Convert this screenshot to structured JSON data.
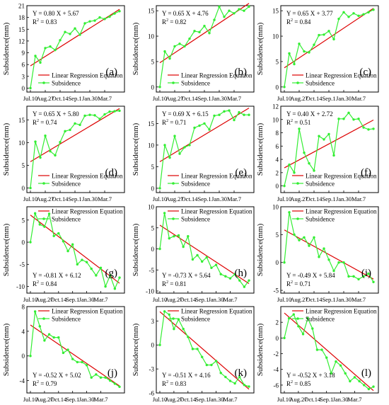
{
  "colors": {
    "regression": "#dd0000",
    "subsidence": "#33ee33",
    "axis": "#000000"
  },
  "common": {
    "ylabel": "Subsidence(mm)",
    "x_tick_labels": [
      "Jul.10",
      "Aug.27",
      "Oct.14",
      "Sep.1",
      "Jan.30",
      "Mar.7"
    ],
    "legend_regression": "Linear Regression Equation",
    "legend_subsidence": "Subsidence"
  },
  "chart_data": [
    {
      "type": "line",
      "label": "(a)",
      "equation": "Y = 0.80 X + 5.67",
      "r2_text": "R",
      "r2_value": " = 0.83",
      "ylim": [
        -1,
        21
      ],
      "yticks": [
        0,
        3,
        6,
        9,
        12,
        15,
        18,
        21
      ],
      "stats_pos": "top-left",
      "legend_pos": "bottom-right",
      "series": [
        {
          "name": "Linear Regression Equation",
          "kind": "regression",
          "slope": 0.8,
          "intercept": 5.67
        },
        {
          "name": "Subsidence",
          "kind": "data",
          "values": [
            0,
            8.2,
            6.5,
            10.2,
            10.6,
            9.7,
            12.2,
            14.3,
            13.8,
            15.2,
            13.6,
            16.5,
            17.0,
            17.2,
            18.0,
            17.6,
            18.2,
            19.0,
            19.6
          ]
        }
      ]
    },
    {
      "type": "line",
      "label": "(b)",
      "equation": "Y = 0.65 X + 4.76",
      "r2_text": "R",
      "r2_value": " = 0.82",
      "ylim": [
        -1,
        16
      ],
      "yticks": [
        0,
        5,
        10,
        15
      ],
      "stats_pos": "top-left",
      "legend_pos": "bottom-right",
      "series": [
        {
          "name": "Linear Regression Equation",
          "kind": "regression",
          "slope": 0.65,
          "intercept": 4.76
        },
        {
          "name": "Subsidence",
          "kind": "data",
          "values": [
            0,
            7.0,
            5.6,
            8.0,
            8.5,
            8.0,
            9.5,
            11.0,
            10.8,
            12.0,
            10.6,
            13.2,
            15.8,
            13.8,
            15.0,
            14.5,
            15.3,
            15.0,
            15.8
          ]
        }
      ]
    },
    {
      "type": "line",
      "label": "(c)",
      "equation": "Y = 0.65 X + 3.77",
      "r2_text": "R",
      "r2_value": " = 0.84",
      "ylim": [
        -1,
        16
      ],
      "yticks": [
        0,
        5,
        10,
        15
      ],
      "stats_pos": "top-left",
      "legend_pos": "bottom-right",
      "series": [
        {
          "name": "Linear Regression Equation",
          "kind": "regression",
          "slope": 0.65,
          "intercept": 3.77
        },
        {
          "name": "Subsidence",
          "kind": "data",
          "values": [
            0,
            6.6,
            4.5,
            8.5,
            7.0,
            6.8,
            8.3,
            10.2,
            10.3,
            11.0,
            9.4,
            13.4,
            14.7,
            13.8,
            14.5,
            14.0,
            14.3,
            14.7,
            15.2
          ]
        }
      ]
    },
    {
      "type": "line",
      "label": "(d)",
      "equation": "Y = 0.65 X + 5.80",
      "r2_text": "R",
      "r2_value": " = 0.74",
      "ylim": [
        -1,
        18
      ],
      "yticks": [
        0,
        5,
        10,
        15
      ],
      "stats_pos": "top-left",
      "legend_pos": "bottom-right",
      "series": [
        {
          "name": "Linear Regression Equation",
          "kind": "regression",
          "slope": 0.65,
          "intercept": 5.8
        },
        {
          "name": "Subsidence",
          "kind": "data",
          "values": [
            0,
            10.2,
            6.7,
            11.5,
            8.1,
            7.2,
            10.1,
            12.5,
            12.8,
            14.2,
            13.9,
            15.9,
            16.1,
            16.0,
            15.2,
            16.2,
            16.8,
            16.9,
            17.0
          ]
        }
      ]
    },
    {
      "type": "line",
      "label": "(e)",
      "equation": "Y = 0.69 X + 6.15",
      "r2_text": "R",
      "r2_value": " = 0.71",
      "ylim": [
        -1,
        19
      ],
      "yticks": [
        0,
        5,
        10,
        15
      ],
      "stats_pos": "top-left",
      "legend_pos": "bottom-right",
      "series": [
        {
          "name": "Linear Regression Equation",
          "kind": "regression",
          "slope": 0.69,
          "intercept": 6.15
        },
        {
          "name": "Subsidence",
          "kind": "data",
          "values": [
            0,
            10.0,
            7.1,
            12.1,
            8.0,
            9.5,
            10.0,
            14.0,
            14.5,
            15.0,
            13.6,
            16.8,
            17.0,
            17.8,
            18.0,
            15.8,
            17.6,
            17.0,
            17.0
          ]
        }
      ]
    },
    {
      "type": "line",
      "label": "(f)",
      "equation": "Y = 0.40 X + 2.72",
      "r2_text": "R",
      "r2_value": " = 0.51",
      "ylim": [
        -1,
        12
      ],
      "yticks": [
        0,
        2,
        4,
        6,
        8,
        10,
        12
      ],
      "stats_pos": "top-left",
      "legend_pos": "bottom-right",
      "series": [
        {
          "name": "Linear Regression Equation",
          "kind": "regression",
          "slope": 0.4,
          "intercept": 2.72
        },
        {
          "name": "Subsidence",
          "kind": "data",
          "values": [
            0,
            3.2,
            2.0,
            8.6,
            5.0,
            3.4,
            2.3,
            7.5,
            7.0,
            7.8,
            4.6,
            10.1,
            10.1,
            11.0,
            10.0,
            10.1,
            8.8,
            8.5,
            8.6
          ]
        }
      ]
    },
    {
      "type": "line",
      "label": "(g)",
      "equation": "Y = -0.81 X + 6.12",
      "r2_text": "R",
      "r2_value": " = 0.84",
      "ylim": [
        -11.5,
        8
      ],
      "yticks": [
        -10,
        -5,
        0,
        5
      ],
      "stats_pos": "bottom-left",
      "legend_pos": "top-right",
      "series": [
        {
          "name": "Linear Regression Equation",
          "kind": "regression",
          "slope": -0.81,
          "intercept": 6.12
        },
        {
          "name": "Subsidence",
          "kind": "data",
          "values": [
            0,
            6.5,
            4.0,
            3.5,
            6.4,
            1.4,
            2.0,
            0.2,
            -2.0,
            -0.5,
            -5.0,
            -4.0,
            -4.5,
            -6.0,
            -7.5,
            -5.8,
            -10.0,
            -7.5,
            -10.5,
            -8.0
          ]
        }
      ]
    },
    {
      "type": "line",
      "label": "(h)",
      "equation": "Y = -0.73 X + 5.64",
      "r2_text": "R",
      "r2_value": " = 0.81",
      "ylim": [
        -10.5,
        10
      ],
      "yticks": [
        -10,
        -5,
        0,
        5,
        10
      ],
      "stats_pos": "bottom-left",
      "legend_pos": "top-right",
      "series": [
        {
          "name": "Linear Regression Equation",
          "kind": "regression",
          "slope": -0.73,
          "intercept": 5.64
        },
        {
          "name": "Subsidence",
          "kind": "data",
          "values": [
            0,
            8.5,
            2.5,
            3.0,
            3.2,
            0.5,
            3.0,
            -2.5,
            -1.5,
            -3.0,
            -2.0,
            -4.5,
            -3.8,
            -6.0,
            -6.5,
            -7.0,
            -6.0,
            -7.5,
            -9.0,
            -7.5
          ]
        }
      ]
    },
    {
      "type": "line",
      "label": "(i)",
      "equation": "Y = -0.49 X + 5.84",
      "r2_text": "R",
      "r2_value": " = 0.71",
      "ylim": [
        -5.5,
        10
      ],
      "yticks": [
        -5,
        0,
        5,
        10
      ],
      "stats_pos": "bottom-left",
      "legend_pos": "top-right",
      "series": [
        {
          "name": "Linear Regression Equation",
          "kind": "regression",
          "slope": -0.49,
          "intercept": 5.84
        },
        {
          "name": "Subsidence",
          "kind": "data",
          "values": [
            0,
            9.0,
            5.0,
            4.0,
            4.5,
            3.0,
            4.5,
            1.0,
            2.5,
            0.5,
            -1.5,
            0.0,
            0.0,
            -2.5,
            -2.5,
            -3.0,
            -2.5,
            -2.0,
            -3.5
          ]
        }
      ]
    },
    {
      "type": "line",
      "label": "(j)",
      "equation": "Y = -0.52 X + 5.02",
      "r2_text": "R",
      "r2_value": " = 0.79",
      "ylim": [
        -6,
        8
      ],
      "yticks": [
        -4,
        0,
        4,
        8
      ],
      "stats_pos": "bottom-left",
      "legend_pos": "top-right",
      "series": [
        {
          "name": "Linear Regression Equation",
          "kind": "regression",
          "slope": -0.52,
          "intercept": 5.02
        },
        {
          "name": "Subsidence",
          "kind": "data",
          "values": [
            0,
            7.2,
            4.8,
            2.5,
            3.5,
            3.0,
            3.0,
            0.5,
            1.0,
            -0.5,
            -1.0,
            -1.0,
            -1.5,
            -3.5,
            -3.0,
            -3.5,
            -3.5,
            -4.0,
            -4.5,
            -5.0
          ]
        }
      ]
    },
    {
      "type": "line",
      "label": "(k)",
      "equation": "Y = -0.51 X + 4.16",
      "r2_text": "R",
      "r2_value": " = 0.83",
      "ylim": [
        -6,
        4.8
      ],
      "yticks": [
        -6,
        -3,
        0,
        3
      ],
      "stats_pos": "bottom-left",
      "legend_pos": "top-right",
      "series": [
        {
          "name": "Linear Regression Equation",
          "kind": "regression",
          "slope": -0.51,
          "intercept": 4.16
        },
        {
          "name": "Subsidence",
          "kind": "data",
          "values": [
            0,
            4.2,
            3.8,
            2.0,
            3.2,
            2.0,
            1.0,
            -0.5,
            -0.5,
            -1.5,
            -2.5,
            -2.5,
            -2.0,
            -3.5,
            -4.0,
            -4.5,
            -4.8,
            -4.0,
            -5.0,
            -5.2
          ]
        }
      ]
    },
    {
      "type": "line",
      "label": "(l)",
      "equation": "Y = -0.52 X + 3.18",
      "r2_text": "R",
      "r2_value": " = 0.85",
      "ylim": [
        -7,
        4
      ],
      "yticks": [
        -6,
        -4,
        -2,
        0,
        2
      ],
      "stats_pos": "bottom-left",
      "legend_pos": "top-right",
      "series": [
        {
          "name": "Linear Regression Equation",
          "kind": "regression",
          "slope": -0.52,
          "intercept": 3.18
        },
        {
          "name": "Subsidence",
          "kind": "data",
          "values": [
            0,
            2.5,
            3.0,
            1.5,
            0.5,
            2.5,
            1.2,
            -1.5,
            -1.5,
            -2.5,
            -4.5,
            -3.0,
            -3.5,
            -4.5,
            -5.5,
            -5.0,
            -5.5,
            -6.0,
            -6.5,
            -6.2
          ]
        }
      ]
    }
  ]
}
